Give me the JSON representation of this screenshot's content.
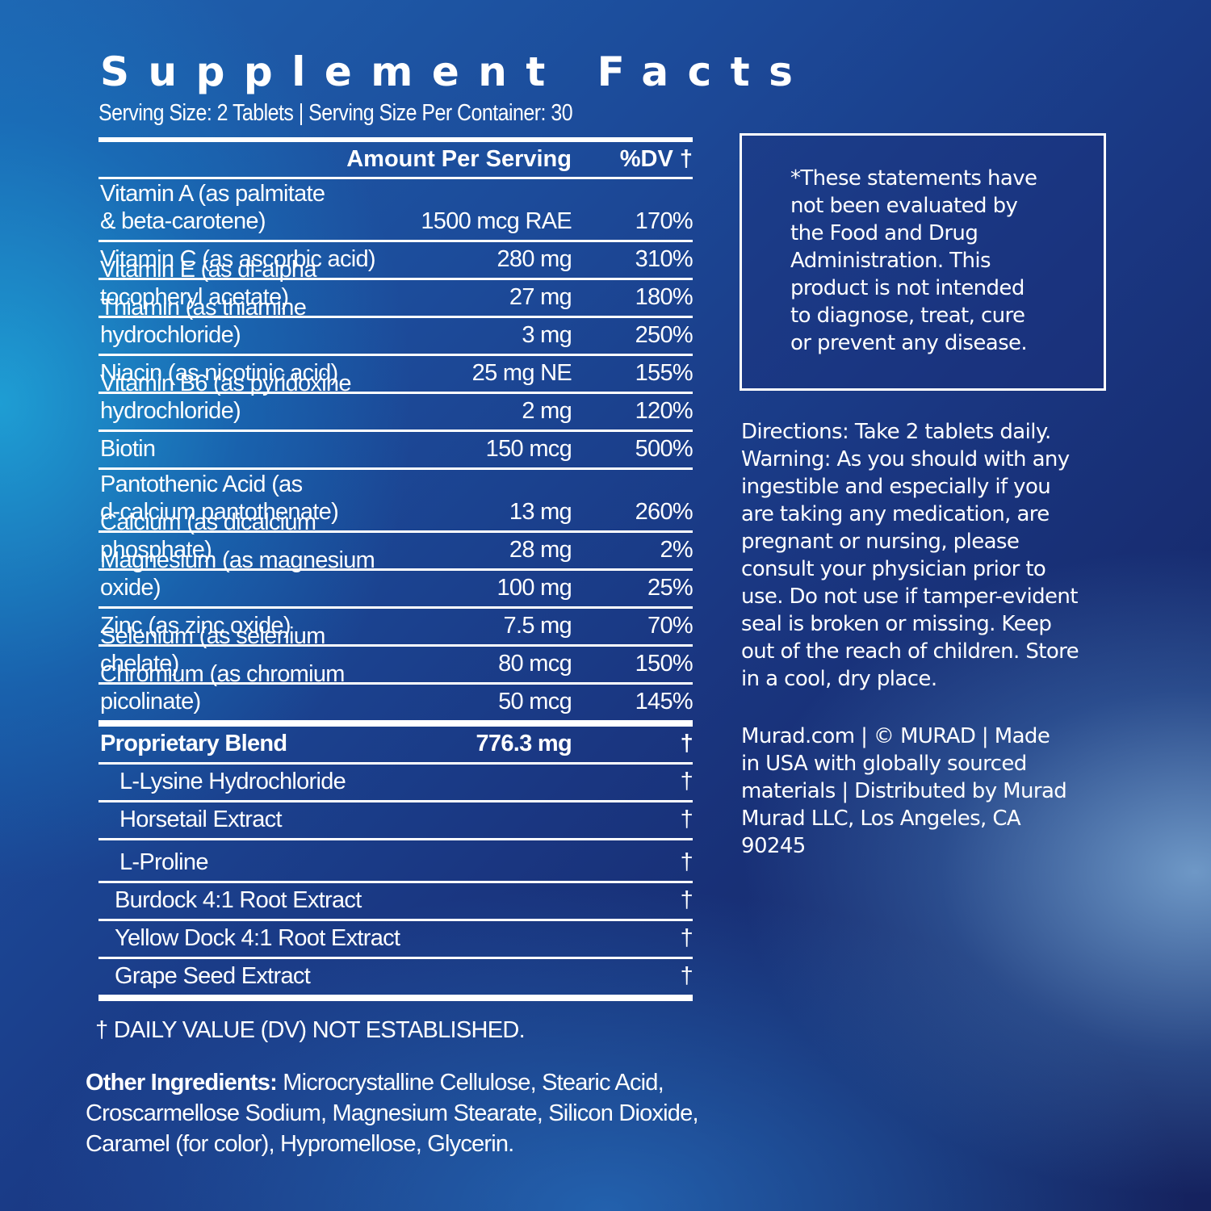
{
  "facts": {
    "title": "Supplement Facts",
    "serving_line": "Serving Size: 2 Tablets | Serving Size Per Container: 30",
    "header": {
      "amount": "Amount Per Serving",
      "dv": "%DV †"
    },
    "nutrients": [
      {
        "name": "Vitamin A (as palmitate\n& beta-carotene)",
        "amount": "1500 mcg RAE",
        "dv": "170%"
      },
      {
        "name": "Vitamin C (as ascorbic acid)",
        "amount": "280 mg",
        "dv": "310%"
      },
      {
        "name": "Vitamin E (as dl-alpha tocopheryl acetate)",
        "amount": "27 mg",
        "dv": "180%"
      },
      {
        "name": "Thiamin (as thiamine hydrochloride)",
        "amount": "3 mg",
        "dv": "250%"
      },
      {
        "name": "Niacin (as nicotinic acid)",
        "amount": "25 mg NE",
        "dv": "155%"
      },
      {
        "name": "Vitamin B6 (as pyridoxine hydrochloride)",
        "amount": "2 mg",
        "dv": "120%"
      },
      {
        "name": "Biotin",
        "amount": "150 mcg",
        "dv": "500%"
      },
      {
        "name": "Pantothenic Acid (as\nd-calcium pantothenate)",
        "amount": "13 mg",
        "dv": "260%"
      },
      {
        "name": "Calcium (as dicalcium phosphate)",
        "amount": "28 mg",
        "dv": "2%"
      },
      {
        "name": "Magnesium (as magnesium oxide)",
        "amount": "100 mg",
        "dv": "25%"
      },
      {
        "name": "Zinc (as zinc oxide)",
        "amount": "7.5 mg",
        "dv": "70%"
      },
      {
        "name": "Selenium (as selenium chelate)",
        "amount": "80 mcg",
        "dv": "150%"
      },
      {
        "name": "Chromium (as chromium picolinate)",
        "amount": "50 mcg",
        "dv": "145%"
      }
    ],
    "blend": {
      "name": "Proprietary Blend",
      "amount": "776.3 mg",
      "dv": "†",
      "ingredients": [
        {
          "name": "L-Lysine Hydrochloride",
          "dv": "†"
        },
        {
          "name": "Horsetail Extract",
          "dv": "†"
        },
        {
          "name": "L-Proline",
          "dv": "†"
        },
        {
          "name": "Burdock 4:1 Root Extract",
          "dv": "†"
        },
        {
          "name": "Yellow Dock 4:1 Root Extract",
          "dv": "†"
        },
        {
          "name": "Grape Seed Extract",
          "dv": "†"
        }
      ]
    },
    "dv_note": "† DAILY VALUE (DV) NOT ESTABLISHED.",
    "other_ingredients_label": "Other Ingredients:",
    "other_ingredients": " Microcrystalline Cellulose, Stearic Acid, Croscarmellose Sodium, Magnesium Stearate, Silicon Dioxide, Caramel (for color), Hypromellose, Glycerin."
  },
  "fda_disclaimer": "*These statements have\nnot been evaluated by\n  the Food and Drug\nAdministration. This\nproduct is not intended\nto diagnose, treat, cure\nor prevent any disease.",
  "directions": "Directions: Take 2 tablets daily.\nWarning: As you should with any\ningestible and especially if you\nare taking any medication, are\npregnant or nursing, please\nconsult your physician prior to\nuse. Do not use if tamper-evident\nseal is broken or missing. Keep\nout of the reach of children. Store\nin a cool, dry place.",
  "company_info": "Murad.com | © MURAD | Made\nin USA with globally sourced\nmaterials | Distributed by Murad\nMurad LLC, Los Angeles, CA\n90245",
  "colors": {
    "text": "#ffffff",
    "background_dark": "#15225e",
    "background_mid": "#1c4b9a",
    "background_light": "#1eaadc"
  }
}
